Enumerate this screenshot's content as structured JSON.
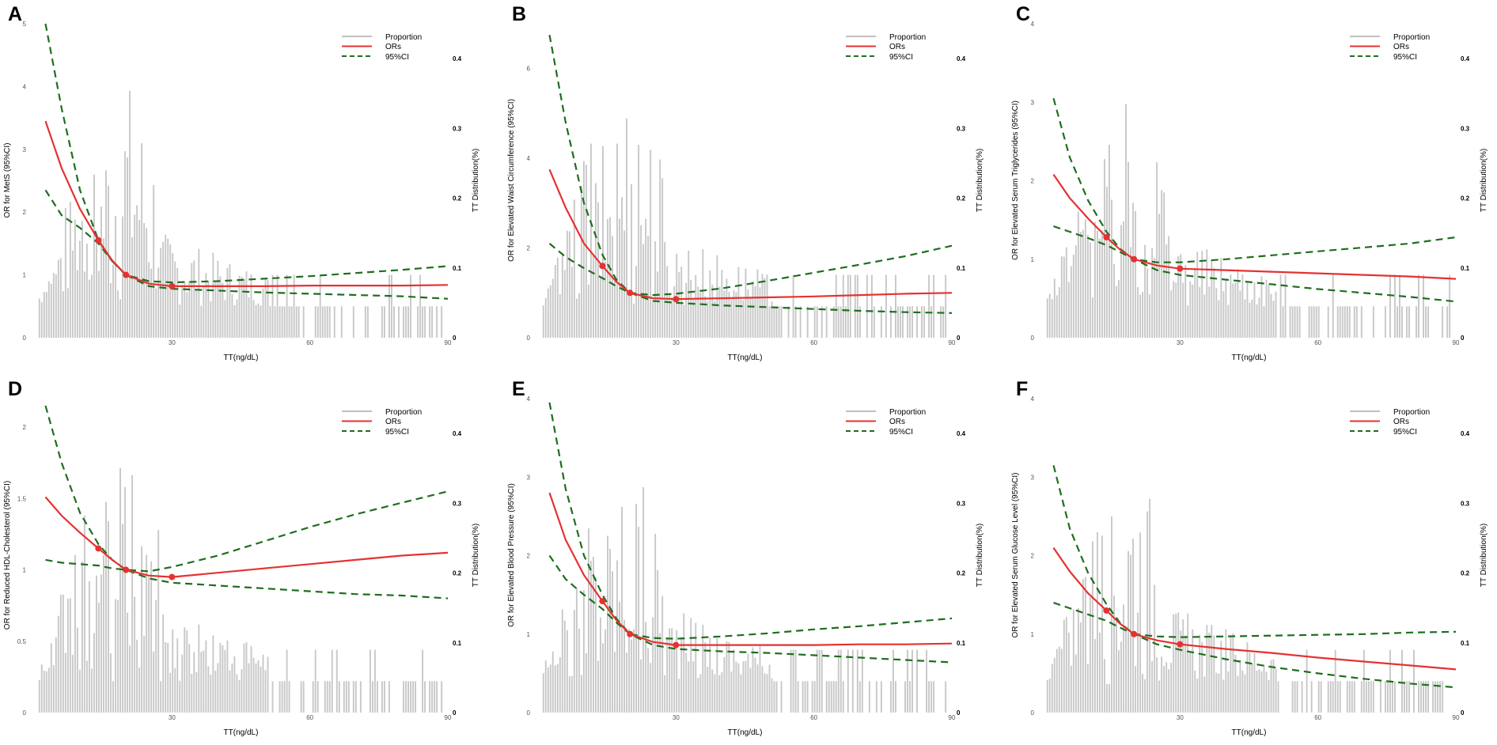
{
  "figure": {
    "colors": {
      "histogram": "#c8c8c8",
      "ors_line": "#e53232",
      "ci_line": "#1e6e1e",
      "point": "#e53232",
      "axis_text": "#555555"
    },
    "legend": {
      "proportion": "Proportion",
      "ors": "ORs",
      "ci": "95%CI"
    }
  },
  "chart_data": [
    {
      "type": "line",
      "panel": "A",
      "xlabel": "TT(ng/dL)",
      "ylabel": "OR for MetS (95%CI)",
      "y2label": "TT Distribution(%)",
      "xlim": [
        0,
        90
      ],
      "xticks": [
        30,
        60,
        90
      ],
      "ylim": [
        0,
        5
      ],
      "yticks": [
        0,
        1,
        2,
        3,
        4,
        5
      ],
      "yticklabels": [
        "0",
        "1",
        "2",
        "3",
        "4",
        "5"
      ],
      "y2lim": [
        0,
        0.45
      ],
      "y2ticks": [
        0,
        0.1,
        0.2,
        0.3,
        0.4
      ],
      "y2ticklabels": [
        "0",
        "0.1",
        "0.2",
        "0.3",
        "0.4"
      ],
      "ors": {
        "x": [
          2.5,
          6,
          10,
          14,
          17,
          20,
          25,
          30,
          40,
          50,
          60,
          70,
          80,
          90
        ],
        "y": [
          3.45,
          2.7,
          2.05,
          1.55,
          1.23,
          1.0,
          0.86,
          0.82,
          0.82,
          0.82,
          0.83,
          0.83,
          0.83,
          0.84
        ]
      },
      "ci_upper": {
        "x": [
          2.5,
          6,
          10,
          14,
          17,
          20,
          25,
          30,
          40,
          50,
          60,
          70,
          80,
          90
        ],
        "y": [
          5.0,
          3.65,
          2.35,
          1.55,
          1.22,
          1.0,
          0.9,
          0.88,
          0.9,
          0.94,
          0.98,
          1.03,
          1.08,
          1.14
        ]
      },
      "ci_lower": {
        "x": [
          2.5,
          6,
          10,
          14,
          17,
          20,
          25,
          30,
          40,
          50,
          60,
          70,
          80,
          90
        ],
        "y": [
          2.35,
          1.95,
          1.75,
          1.5,
          1.22,
          1.0,
          0.82,
          0.78,
          0.75,
          0.72,
          0.7,
          0.68,
          0.66,
          0.62
        ]
      },
      "points": {
        "x": [
          14,
          20,
          30
        ],
        "y": [
          1.55,
          1.0,
          0.82
        ]
      }
    },
    {
      "type": "line",
      "panel": "B",
      "xlabel": "TT(ng/dL)",
      "ylabel": "OR for Elevated Waist Circumference (95%CI)",
      "y2label": "TT Distribution(%)",
      "xlim": [
        0,
        90
      ],
      "xticks": [
        30,
        60,
        90
      ],
      "ylim": [
        0,
        7
      ],
      "yticks": [
        0,
        2,
        4,
        6
      ],
      "yticklabels": [
        "0",
        "2",
        "4",
        "6"
      ],
      "y2lim": [
        0,
        0.45
      ],
      "y2ticks": [
        0,
        0.1,
        0.2,
        0.3,
        0.4
      ],
      "y2ticklabels": [
        "0",
        "0.1",
        "0.2",
        "0.3",
        "0.4"
      ],
      "ors": {
        "x": [
          2.5,
          6,
          10,
          14,
          17,
          20,
          25,
          30,
          40,
          50,
          60,
          70,
          80,
          90
        ],
        "y": [
          3.75,
          2.9,
          2.1,
          1.6,
          1.25,
          1.0,
          0.88,
          0.86,
          0.88,
          0.9,
          0.92,
          0.95,
          0.98,
          1.0
        ]
      },
      "ci_upper": {
        "x": [
          2.5,
          6,
          10,
          14,
          17,
          20,
          25,
          30,
          40,
          50,
          60,
          70,
          80,
          90
        ],
        "y": [
          6.75,
          4.8,
          3.0,
          1.85,
          1.3,
          1.0,
          0.95,
          0.98,
          1.1,
          1.27,
          1.45,
          1.63,
          1.82,
          2.05
        ]
      },
      "ci_lower": {
        "x": [
          2.5,
          6,
          10,
          14,
          17,
          20,
          25,
          30,
          40,
          50,
          60,
          70,
          80,
          90
        ],
        "y": [
          2.1,
          1.8,
          1.55,
          1.33,
          1.15,
          1.0,
          0.82,
          0.78,
          0.72,
          0.68,
          0.64,
          0.6,
          0.57,
          0.55
        ]
      },
      "points": {
        "x": [
          14,
          20,
          30
        ],
        "y": [
          1.6,
          1.0,
          0.86
        ]
      }
    },
    {
      "type": "line",
      "panel": "C",
      "xlabel": "TT(ng/dL)",
      "ylabel": "OR for Elevated Serum Triglycerides (95%CI)",
      "y2label": "TT Distribution(%)",
      "xlim": [
        0,
        90
      ],
      "xticks": [
        30,
        60,
        90
      ],
      "ylim": [
        0,
        4
      ],
      "yticks": [
        0,
        1,
        2,
        3,
        4
      ],
      "yticklabels": [
        "0",
        "1",
        "2",
        "3",
        "4"
      ],
      "y2lim": [
        0,
        0.45
      ],
      "y2ticks": [
        0,
        0.1,
        0.2,
        0.3,
        0.4
      ],
      "y2ticklabels": [
        "0",
        "0.1",
        "0.2",
        "0.3",
        "0.4"
      ],
      "ors": {
        "x": [
          2.5,
          6,
          10,
          14,
          17,
          20,
          25,
          30,
          40,
          50,
          60,
          70,
          80,
          90
        ],
        "y": [
          2.08,
          1.78,
          1.52,
          1.28,
          1.12,
          1.0,
          0.92,
          0.88,
          0.86,
          0.84,
          0.82,
          0.8,
          0.78,
          0.75
        ]
      },
      "ci_upper": {
        "x": [
          2.5,
          6,
          10,
          14,
          17,
          20,
          25,
          30,
          40,
          50,
          60,
          70,
          80,
          90
        ],
        "y": [
          3.05,
          2.3,
          1.75,
          1.35,
          1.13,
          1.0,
          0.96,
          0.96,
          1.0,
          1.05,
          1.1,
          1.15,
          1.2,
          1.28
        ]
      },
      "ci_lower": {
        "x": [
          2.5,
          6,
          10,
          14,
          17,
          20,
          25,
          30,
          40,
          50,
          60,
          70,
          80,
          90
        ],
        "y": [
          1.42,
          1.35,
          1.27,
          1.18,
          1.09,
          1.0,
          0.86,
          0.8,
          0.74,
          0.68,
          0.62,
          0.57,
          0.52,
          0.46
        ]
      },
      "points": {
        "x": [
          14,
          20,
          30
        ],
        "y": [
          1.28,
          1.0,
          0.88
        ]
      }
    },
    {
      "type": "line",
      "panel": "D",
      "xlabel": "TT(ng/dL)",
      "ylabel": "OR for Reduced HDL-Cholesterol (95%CI)",
      "y2label": "TT Distribution(%)",
      "xlim": [
        0,
        90
      ],
      "xticks": [
        30,
        60,
        90
      ],
      "ylim": [
        0,
        2.2
      ],
      "yticks": [
        0,
        0.5,
        1,
        1.5,
        2
      ],
      "yticklabels": [
        "0",
        "0.5",
        "1",
        "1.5",
        "2"
      ],
      "y2lim": [
        0,
        0.45
      ],
      "y2ticks": [
        0,
        0.1,
        0.2,
        0.3,
        0.4
      ],
      "y2ticklabels": [
        "0",
        "0.1",
        "0.2",
        "0.3",
        "0.4"
      ],
      "ors": {
        "x": [
          2.5,
          6,
          10,
          14,
          17,
          20,
          25,
          30,
          40,
          50,
          60,
          70,
          80,
          90
        ],
        "y": [
          1.51,
          1.38,
          1.26,
          1.15,
          1.07,
          1.0,
          0.96,
          0.95,
          0.98,
          1.01,
          1.04,
          1.07,
          1.1,
          1.12
        ]
      },
      "ci_upper": {
        "x": [
          2.5,
          6,
          10,
          14,
          17,
          20,
          25,
          30,
          40,
          50,
          60,
          70,
          80,
          90
        ],
        "y": [
          2.15,
          1.75,
          1.4,
          1.18,
          1.07,
          1.0,
          0.99,
          1.02,
          1.1,
          1.2,
          1.3,
          1.39,
          1.47,
          1.55
        ]
      },
      "ci_lower": {
        "x": [
          2.5,
          6,
          10,
          14,
          17,
          20,
          25,
          30,
          40,
          50,
          60,
          70,
          80,
          90
        ],
        "y": [
          1.07,
          1.05,
          1.04,
          1.03,
          1.01,
          1.0,
          0.94,
          0.91,
          0.89,
          0.87,
          0.85,
          0.83,
          0.82,
          0.8
        ]
      },
      "points": {
        "x": [
          14,
          20,
          30
        ],
        "y": [
          1.15,
          1.0,
          0.95
        ]
      }
    },
    {
      "type": "line",
      "panel": "E",
      "xlabel": "TT(ng/dL)",
      "ylabel": "OR for Elevated Blood Pressure (95%CI)",
      "y2label": "TT Distribution(%)",
      "xlim": [
        0,
        90
      ],
      "xticks": [
        30,
        60,
        90
      ],
      "ylim": [
        0,
        4
      ],
      "yticks": [
        0,
        1,
        2,
        3,
        4
      ],
      "yticklabels": [
        "0",
        "1",
        "2",
        "3",
        "4"
      ],
      "y2lim": [
        0,
        0.45
      ],
      "y2ticks": [
        0,
        0.1,
        0.2,
        0.3,
        0.4
      ],
      "y2ticklabels": [
        "0",
        "0.1",
        "0.2",
        "0.3",
        "0.4"
      ],
      "ors": {
        "x": [
          2.5,
          6,
          10,
          14,
          17,
          20,
          25,
          30,
          40,
          50,
          60,
          70,
          80,
          90
        ],
        "y": [
          2.8,
          2.2,
          1.75,
          1.42,
          1.18,
          1.0,
          0.9,
          0.86,
          0.86,
          0.86,
          0.86,
          0.87,
          0.87,
          0.88
        ]
      },
      "ci_upper": {
        "x": [
          2.5,
          6,
          10,
          14,
          17,
          20,
          25,
          30,
          40,
          50,
          60,
          70,
          80,
          90
        ],
        "y": [
          3.95,
          2.85,
          2.0,
          1.5,
          1.2,
          1.0,
          0.95,
          0.94,
          0.97,
          1.01,
          1.06,
          1.1,
          1.15,
          1.2
        ]
      },
      "ci_lower": {
        "x": [
          2.5,
          6,
          10,
          14,
          17,
          20,
          25,
          30,
          40,
          50,
          60,
          70,
          80,
          90
        ],
        "y": [
          2.0,
          1.7,
          1.5,
          1.32,
          1.15,
          1.0,
          0.86,
          0.81,
          0.78,
          0.76,
          0.73,
          0.7,
          0.67,
          0.64
        ]
      },
      "points": {
        "x": [
          14,
          20,
          30
        ],
        "y": [
          1.42,
          1.0,
          0.86
        ]
      }
    },
    {
      "type": "line",
      "panel": "F",
      "xlabel": "TT(ng/dL)",
      "ylabel": "OR for Elevated Serum Glucose Level (95%CI)",
      "y2label": "TT Distribution(%)",
      "xlim": [
        0,
        90
      ],
      "xticks": [
        30,
        60,
        90
      ],
      "ylim": [
        0,
        4
      ],
      "yticks": [
        0,
        1,
        2,
        3,
        4
      ],
      "yticklabels": [
        "0",
        "1",
        "2",
        "3",
        "4"
      ],
      "y2lim": [
        0,
        0.45
      ],
      "y2ticks": [
        0,
        0.1,
        0.2,
        0.3,
        0.4
      ],
      "y2ticklabels": [
        "0",
        "0.1",
        "0.2",
        "0.3",
        "0.4"
      ],
      "ors": {
        "x": [
          2.5,
          6,
          10,
          14,
          17,
          20,
          25,
          30,
          40,
          50,
          60,
          70,
          80,
          90
        ],
        "y": [
          2.1,
          1.8,
          1.52,
          1.3,
          1.13,
          1.0,
          0.92,
          0.87,
          0.81,
          0.76,
          0.7,
          0.65,
          0.6,
          0.55
        ]
      },
      "ci_upper": {
        "x": [
          2.5,
          6,
          10,
          14,
          17,
          20,
          25,
          30,
          40,
          50,
          60,
          70,
          80,
          90
        ],
        "y": [
          3.15,
          2.35,
          1.78,
          1.38,
          1.14,
          1.0,
          0.97,
          0.96,
          0.97,
          0.98,
          0.99,
          1.0,
          1.02,
          1.03
        ]
      },
      "ci_lower": {
        "x": [
          2.5,
          6,
          10,
          14,
          17,
          20,
          25,
          30,
          40,
          50,
          60,
          70,
          80,
          90
        ],
        "y": [
          1.4,
          1.33,
          1.25,
          1.17,
          1.08,
          1.0,
          0.87,
          0.8,
          0.68,
          0.58,
          0.5,
          0.43,
          0.37,
          0.32
        ]
      },
      "points": {
        "x": [
          14,
          20,
          30
        ],
        "y": [
          1.3,
          1.0,
          0.87
        ]
      }
    }
  ]
}
